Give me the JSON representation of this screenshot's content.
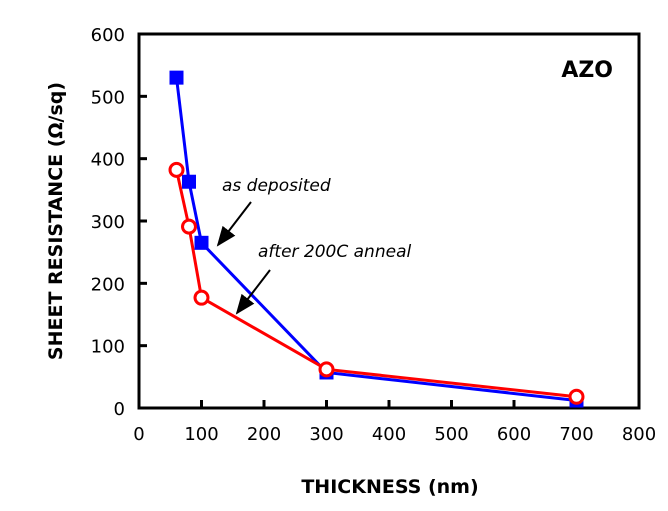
{
  "chart_data": {
    "type": "line",
    "title": "",
    "annotation_label": "AZO",
    "xlabel": "THICKNESS (nm)",
    "ylabel": "SHEET RESISTANCE (Ω/sq)",
    "xlim": [
      0,
      800
    ],
    "ylim": [
      0,
      600
    ],
    "xticks": [
      "0",
      "100",
      "200",
      "300",
      "400",
      "500",
      "600",
      "700",
      "800"
    ],
    "yticks": [
      "0",
      "100",
      "200",
      "300",
      "400",
      "500",
      "600"
    ],
    "grid": false,
    "series": [
      {
        "name": "as deposited",
        "color": "#0000ff",
        "marker": "filled-square",
        "x": [
          60,
          80,
          100,
          300,
          700
        ],
        "y": [
          530,
          363,
          265,
          57,
          12
        ]
      },
      {
        "name": "after 200C anneal",
        "color": "#ff0000",
        "marker": "open-circle",
        "x": [
          60,
          80,
          100,
          300,
          700
        ],
        "y": [
          382,
          291,
          177,
          62,
          18
        ]
      }
    ]
  }
}
